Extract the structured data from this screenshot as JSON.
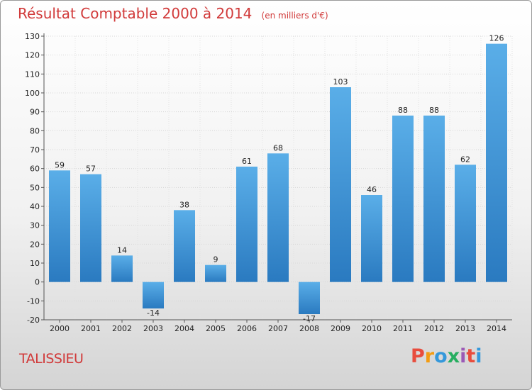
{
  "header": {
    "title": "Résultat Comptable 2000 à 2014",
    "subtitle": "(en milliers d'€)"
  },
  "footer": {
    "commune": "TALISSIEU",
    "logo_text": "Proxiti"
  },
  "colors": {
    "title": "#d13a3a",
    "bar_top": "#5aaee8",
    "bar_bottom": "#2a7ac0",
    "logo": [
      "#e84c3d",
      "#f39c12",
      "#3498db",
      "#27ae60",
      "#9b59b6",
      "#e84c3d",
      "#3498db"
    ]
  },
  "chart_data": {
    "type": "bar",
    "title": "Résultat Comptable 2000 à 2014",
    "subtitle": "(en milliers d'€)",
    "categories": [
      "2000",
      "2001",
      "2002",
      "2003",
      "2004",
      "2005",
      "2006",
      "2007",
      "2008",
      "2009",
      "2010",
      "2011",
      "2012",
      "2013",
      "2014"
    ],
    "values": [
      59,
      57,
      14,
      -14,
      38,
      9,
      61,
      68,
      -17,
      103,
      46,
      88,
      88,
      62,
      126
    ],
    "data_labels": [
      "59",
      "57",
      "14",
      "-14",
      "38",
      "9",
      "61",
      "68",
      "-17",
      "103",
      "46",
      "88",
      "88",
      "62",
      "126"
    ],
    "ylim": [
      -20,
      130
    ],
    "yticks": [
      "-20",
      "-10",
      "0",
      "10",
      "20",
      "30",
      "40",
      "50",
      "60",
      "70",
      "80",
      "90",
      "100",
      "110",
      "120",
      "130"
    ],
    "grid": true,
    "legend": false,
    "xlabel": "",
    "ylabel": ""
  }
}
